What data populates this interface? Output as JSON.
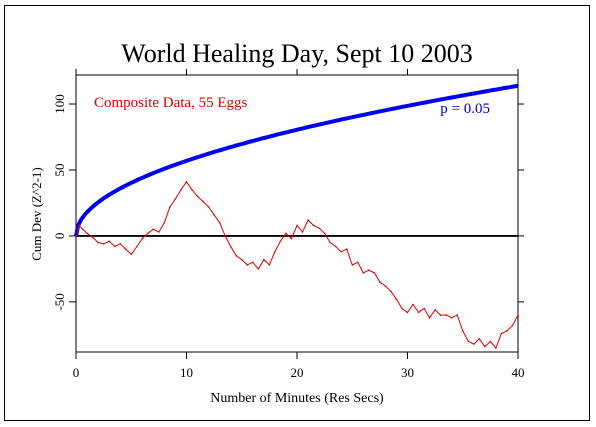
{
  "chart_data": {
    "type": "line",
    "title": "World Healing Day, Sept 10 2003",
    "xlabel": "Number of Minutes (Res Secs)",
    "ylabel": "Cum Dev (Z^2-1)",
    "xlim": [
      0,
      40
    ],
    "ylim": [
      -88,
      122
    ],
    "xticks": [
      0,
      10,
      20,
      30,
      40
    ],
    "yticks": [
      -50,
      0,
      50,
      100
    ],
    "grid": false,
    "annotations": [
      {
        "text": "Composite Data, 55 Eggs",
        "color": "#dd0000"
      },
      {
        "text": "p = 0.05",
        "color": "#0000cc"
      }
    ],
    "reference_lines": [
      {
        "y": 0,
        "color": "#000000"
      }
    ],
    "envelope": {
      "label": "p = 0.05",
      "formula": "y = 18 * sqrt(x)",
      "color": "#0000ee"
    },
    "series": [
      {
        "color": "#dd0000",
        "x": [
          0,
          0.3,
          0.6,
          1,
          1.5,
          2,
          2.5,
          3,
          3.5,
          4,
          4.5,
          5,
          5.5,
          6,
          6.5,
          7,
          7.5,
          8,
          8.5,
          9,
          9.5,
          10,
          10.5,
          11,
          11.5,
          12,
          12.5,
          13,
          13.5,
          14,
          14.5,
          15,
          15.5,
          16,
          16.5,
          17,
          17.5,
          18,
          18.5,
          19,
          19.5,
          20,
          20.5,
          21,
          21.5,
          22,
          22.5,
          23,
          23.5,
          24,
          24.5,
          25,
          25.5,
          26,
          26.5,
          27,
          27.5,
          28,
          28.5,
          29,
          29.5,
          30,
          30.5,
          31,
          31.5,
          32,
          32.5,
          33,
          33.5,
          34,
          34.5,
          35,
          35.5,
          36,
          36.5,
          37,
          37.5,
          38,
          38.5,
          39,
          39.5,
          40
        ],
        "y": [
          0,
          8,
          5,
          2,
          -1,
          -5,
          -6,
          -4,
          -8,
          -6,
          -10,
          -14,
          -8,
          -2,
          2,
          5,
          3,
          10,
          22,
          28,
          35,
          41,
          35,
          30,
          26,
          22,
          16,
          10,
          0,
          -8,
          -15,
          -18,
          -22,
          -20,
          -25,
          -18,
          -22,
          -12,
          -4,
          2,
          -2,
          8,
          3,
          12,
          8,
          6,
          2,
          -5,
          -8,
          -12,
          -10,
          -22,
          -20,
          -28,
          -26,
          -28,
          -35,
          -38,
          -42,
          -48,
          -55,
          -58,
          -52,
          -58,
          -55,
          -62,
          -56,
          -60,
          -60,
          -62,
          -60,
          -72,
          -80,
          -82,
          -78,
          -84,
          -80,
          -85,
          -74,
          -72,
          -68,
          -60
        ]
      }
    ]
  }
}
